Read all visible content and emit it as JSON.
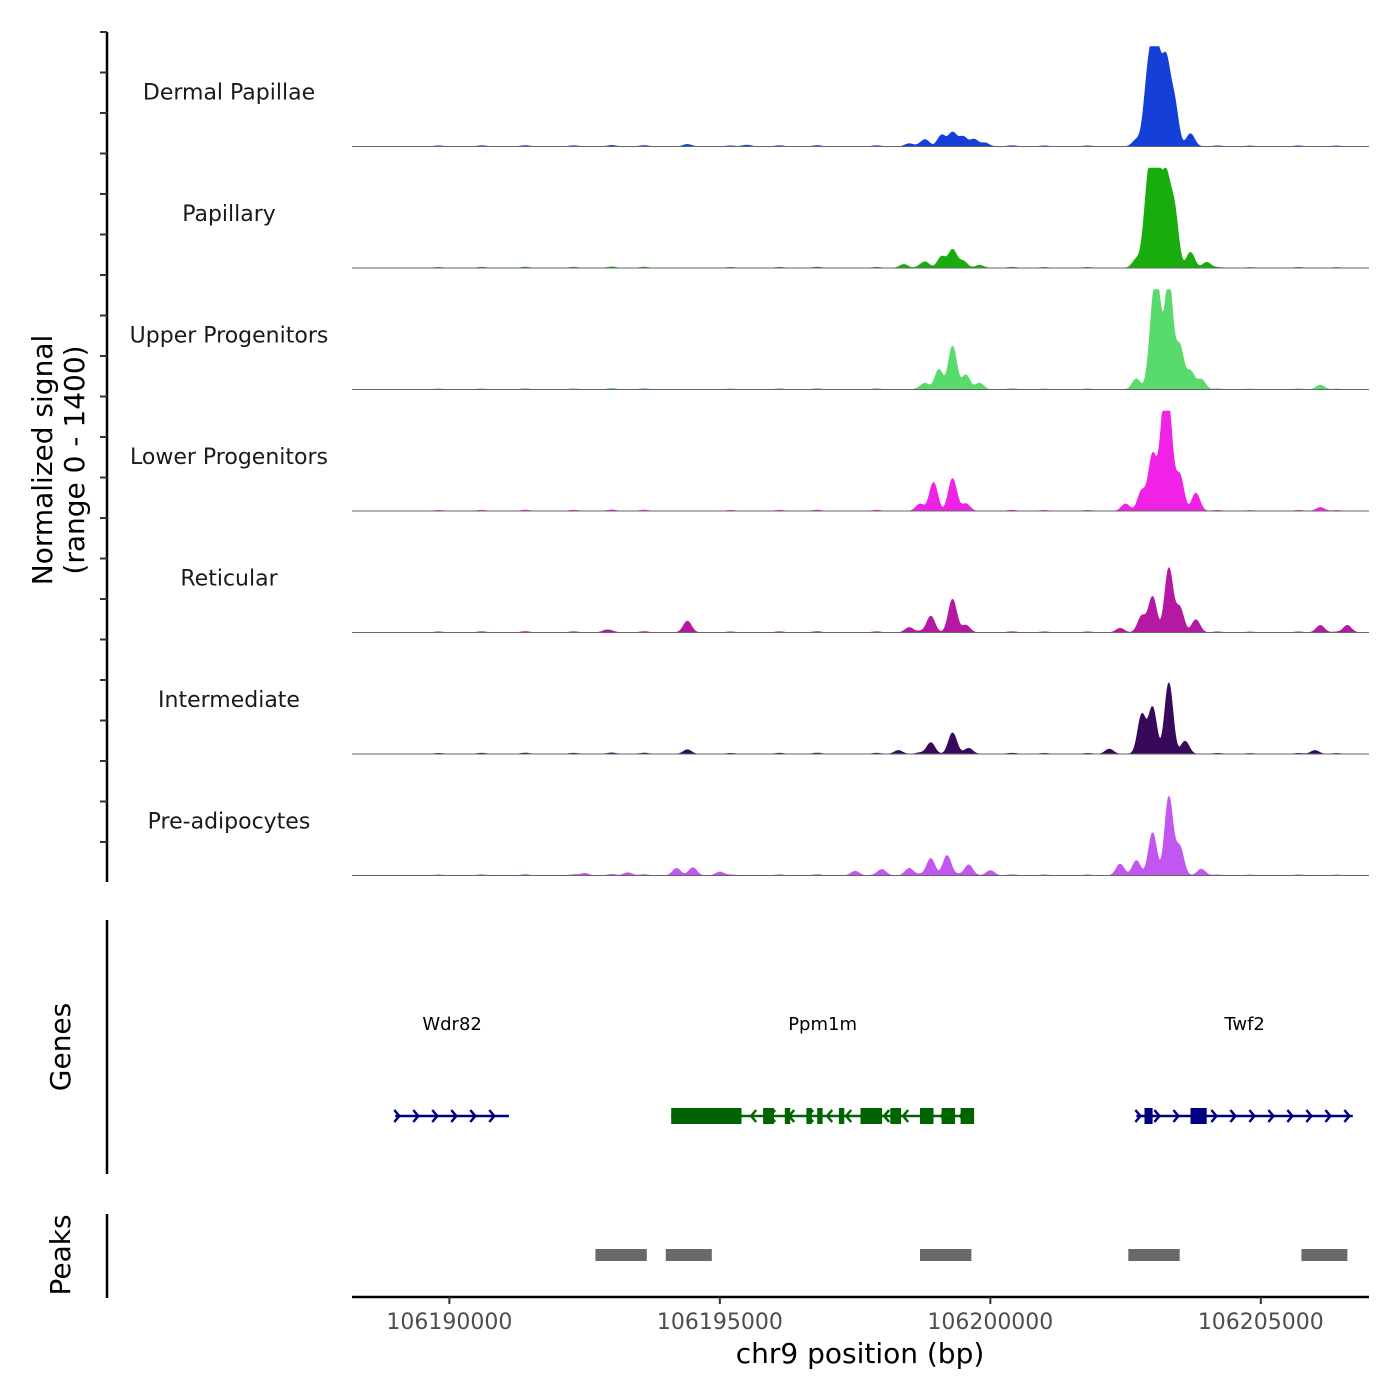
{
  "chart_data": {
    "type": "area",
    "chromosome": "chr9",
    "xlim": [
      106188200,
      106207000
    ],
    "ylabel_line1": "Normalized signal",
    "ylabel_line2": "(range 0 - 1400)",
    "ylim": [
      0,
      1400
    ],
    "xlabel": "chr9 position (bp)",
    "x_ticks": [
      106190000,
      106195000,
      106200000,
      106205000
    ],
    "x_tick_labels": [
      "106190000",
      "106195000",
      "106200000",
      "106205000"
    ],
    "background_peaks": [
      [
        106189800,
        10
      ],
      [
        106190600,
        12
      ],
      [
        106191400,
        14
      ],
      [
        106192300,
        12
      ],
      [
        106193000,
        16
      ],
      [
        106193600,
        14
      ],
      [
        106195200,
        10
      ],
      [
        106196100,
        12
      ],
      [
        106196800,
        14
      ],
      [
        106197900,
        12
      ],
      [
        106198700,
        18
      ],
      [
        106199400,
        16
      ],
      [
        106200400,
        12
      ],
      [
        106201000,
        10
      ],
      [
        106201800,
        10
      ],
      [
        106204200,
        10
      ],
      [
        106204800,
        8
      ],
      [
        106205700,
        10
      ],
      [
        106206400,
        8
      ]
    ],
    "series": [
      {
        "name": "Dermal Papillae",
        "color": "#1440d8",
        "peaks": [
          [
            106198500,
            40
          ],
          [
            106198800,
            90
          ],
          [
            106199100,
            160
          ],
          [
            106199300,
            190
          ],
          [
            106199500,
            130
          ],
          [
            106199700,
            100
          ],
          [
            106199900,
            50
          ],
          [
            106202700,
            90
          ],
          [
            106202900,
            720
          ],
          [
            106203000,
            870
          ],
          [
            106203100,
            940
          ],
          [
            106203250,
            1100
          ],
          [
            106203400,
            600
          ],
          [
            106203700,
            180
          ],
          [
            106194400,
            30
          ],
          [
            106195500,
            20
          ]
        ]
      },
      {
        "name": "Papillary",
        "color": "#18ad0c",
        "peaks": [
          [
            106198400,
            50
          ],
          [
            106198800,
            80
          ],
          [
            106199100,
            160
          ],
          [
            106199300,
            250
          ],
          [
            106199500,
            90
          ],
          [
            106199800,
            40
          ],
          [
            106202700,
            120
          ],
          [
            106202900,
            860
          ],
          [
            106203000,
            920
          ],
          [
            106203100,
            1000
          ],
          [
            106203250,
            1150
          ],
          [
            106203400,
            800
          ],
          [
            106203700,
            220
          ],
          [
            106204000,
            80
          ]
        ]
      },
      {
        "name": "Upper Progenitors",
        "color": "#58db6c",
        "peaks": [
          [
            106198800,
            80
          ],
          [
            106199050,
            280
          ],
          [
            106199300,
            600
          ],
          [
            106199550,
            200
          ],
          [
            106199800,
            90
          ],
          [
            106202700,
            150
          ],
          [
            106203000,
            850
          ],
          [
            106203100,
            1100
          ],
          [
            106203300,
            1500
          ],
          [
            106203500,
            600
          ],
          [
            106203700,
            250
          ],
          [
            106203900,
            140
          ],
          [
            106206100,
            60
          ]
        ]
      },
      {
        "name": "Lower Progenitors",
        "color": "#f022e6",
        "peaks": [
          [
            106198700,
            80
          ],
          [
            106198950,
            400
          ],
          [
            106199300,
            450
          ],
          [
            106199550,
            100
          ],
          [
            106202500,
            100
          ],
          [
            106202800,
            280
          ],
          [
            106203000,
            780
          ],
          [
            106203200,
            1100
          ],
          [
            106203300,
            1150
          ],
          [
            106203500,
            500
          ],
          [
            106203800,
            250
          ],
          [
            106206100,
            50
          ]
        ]
      },
      {
        "name": "Reticular",
        "color": "#b518a3",
        "peaks": [
          [
            106194400,
            160
          ],
          [
            106198500,
            70
          ],
          [
            106198900,
            230
          ],
          [
            106199300,
            460
          ],
          [
            106199550,
            100
          ],
          [
            106202400,
            60
          ],
          [
            106202800,
            230
          ],
          [
            106203000,
            500
          ],
          [
            106203300,
            900
          ],
          [
            106203500,
            350
          ],
          [
            106203800,
            180
          ],
          [
            106206100,
            100
          ],
          [
            106206600,
            100
          ],
          [
            106192900,
            30
          ]
        ]
      },
      {
        "name": "Intermediate",
        "color": "#36095a",
        "peaks": [
          [
            106194400,
            60
          ],
          [
            106198300,
            50
          ],
          [
            106198900,
            160
          ],
          [
            106199300,
            290
          ],
          [
            106199600,
            80
          ],
          [
            106202200,
            70
          ],
          [
            106202800,
            550
          ],
          [
            106203000,
            650
          ],
          [
            106203300,
            1000
          ],
          [
            106203600,
            180
          ],
          [
            106206000,
            50
          ]
        ]
      },
      {
        "name": "Pre-adipocytes",
        "color": "#c157f0",
        "peaks": [
          [
            106194200,
            100
          ],
          [
            106194500,
            110
          ],
          [
            106195000,
            50
          ],
          [
            106197500,
            60
          ],
          [
            106198000,
            80
          ],
          [
            106198500,
            100
          ],
          [
            106198900,
            240
          ],
          [
            106199200,
            280
          ],
          [
            106199600,
            150
          ],
          [
            106200000,
            70
          ],
          [
            106202400,
            160
          ],
          [
            106202700,
            210
          ],
          [
            106203000,
            600
          ],
          [
            106203300,
            1100
          ],
          [
            106203500,
            400
          ],
          [
            106203900,
            90
          ],
          [
            106192500,
            30
          ],
          [
            106193300,
            40
          ]
        ]
      }
    ],
    "genes_label": "Genes",
    "genes": [
      {
        "name": "Wdr82",
        "color": "#000080",
        "strand": "+",
        "start": 106189000,
        "end": 106191100,
        "exons": []
      },
      {
        "name": "Ppm1m",
        "color": "#006400",
        "strand": "-",
        "start": 106194100,
        "end": 106199700,
        "exons": [
          [
            106194100,
            106195400
          ],
          [
            106195800,
            106196000
          ],
          [
            106196200,
            106196300
          ],
          [
            106196600,
            106196700
          ],
          [
            106196800,
            106196900
          ],
          [
            106197200,
            106197300
          ],
          [
            106197600,
            106198000
          ],
          [
            106198150,
            106198350
          ],
          [
            106198700,
            106198950
          ],
          [
            106199100,
            106199350
          ],
          [
            106199450,
            106199700
          ]
        ]
      },
      {
        "name": "Twf2",
        "color": "#000080",
        "strand": "+",
        "start": 106202700,
        "end": 106206700,
        "exons": [
          [
            106202850,
            106203000
          ],
          [
            106203700,
            106204000
          ]
        ]
      }
    ],
    "peaks_label": "Peaks",
    "peaks_color": "#696969",
    "peak_regions": [
      [
        106192700,
        106193650
      ],
      [
        106194000,
        106194850
      ],
      [
        106198700,
        106199650
      ],
      [
        106202550,
        106203500
      ],
      [
        106205750,
        106206600
      ]
    ]
  }
}
